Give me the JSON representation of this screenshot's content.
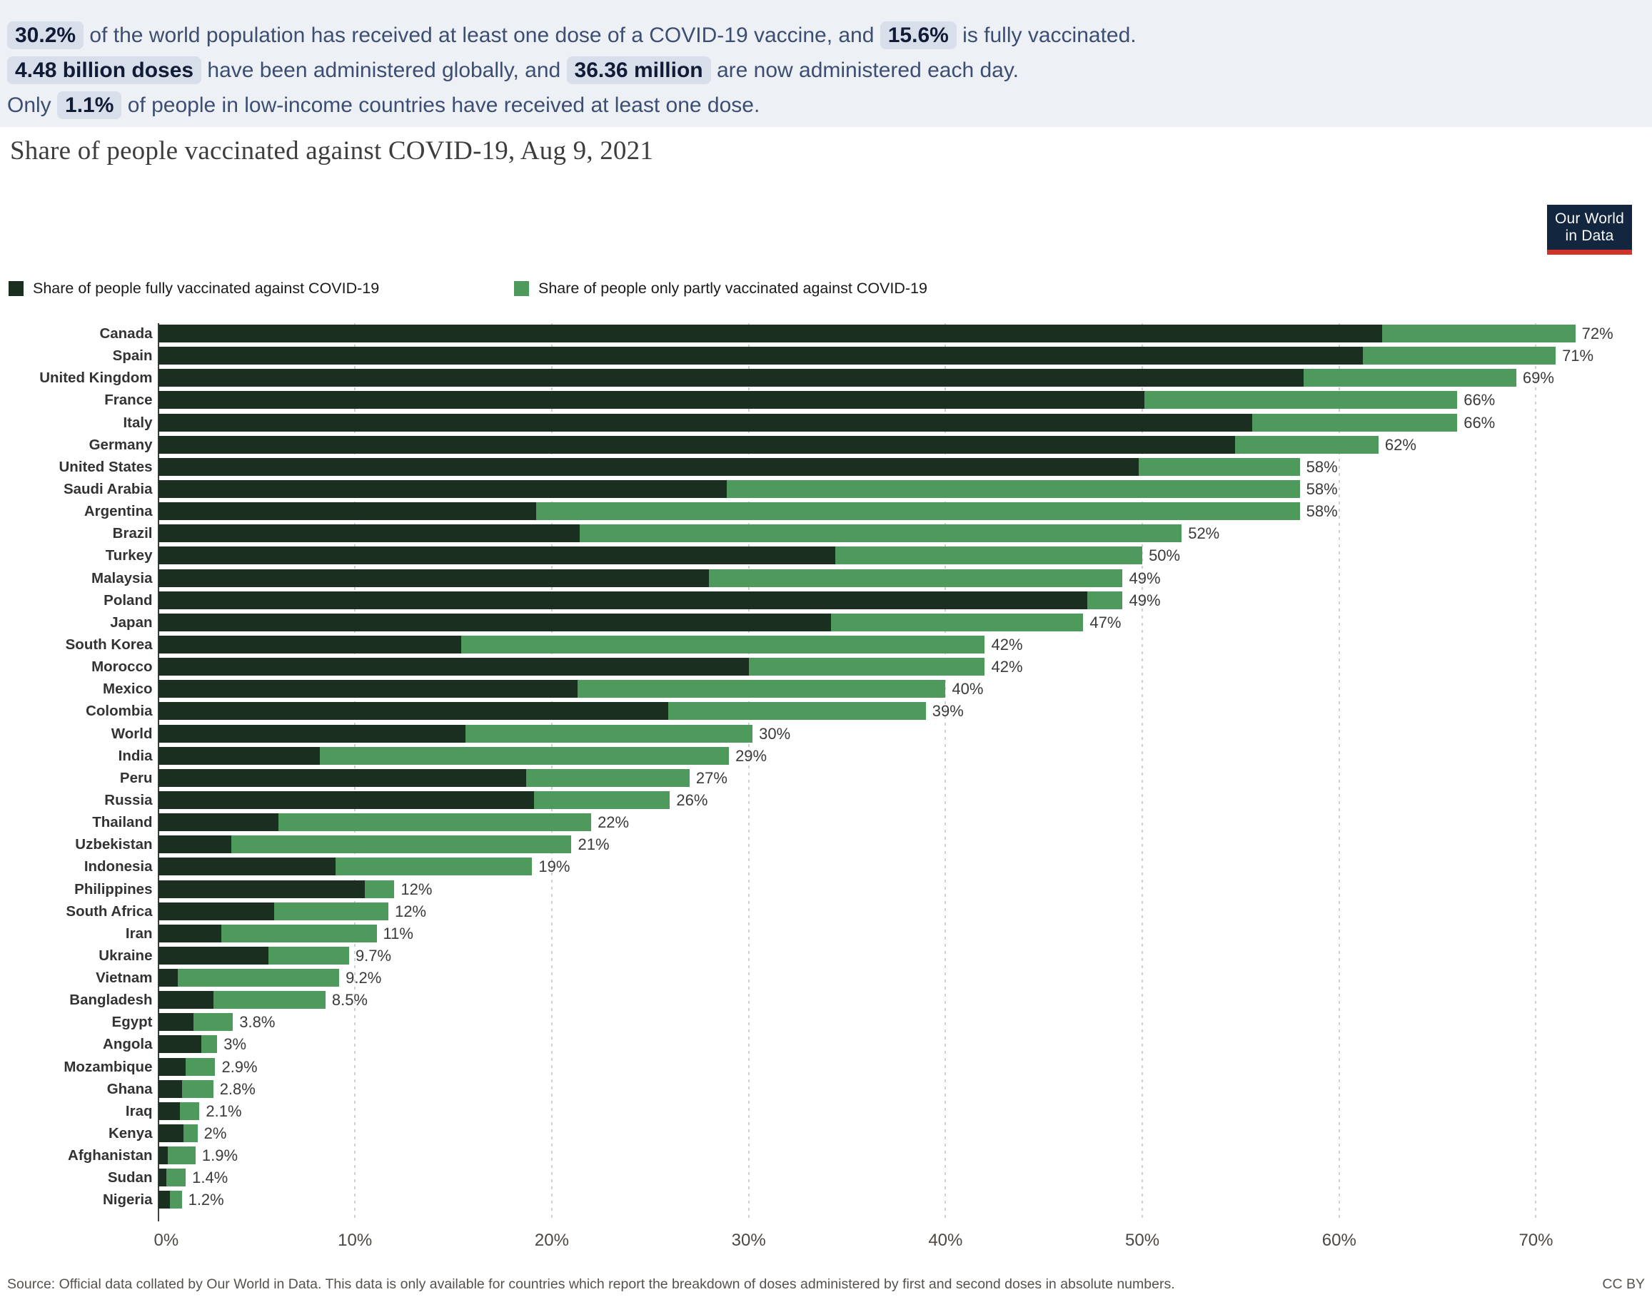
{
  "banner": {
    "lines": [
      [
        {
          "text": "30.2%",
          "chip": true
        },
        {
          "text": " of the world population has received at least one dose of a COVID-19 vaccine, and ",
          "chip": false
        },
        {
          "text": "15.6%",
          "chip": true
        },
        {
          "text": " is fully vaccinated.",
          "chip": false
        }
      ],
      [
        {
          "text": "4.48 billion doses",
          "chip": true
        },
        {
          "text": " have been administered globally, and ",
          "chip": false
        },
        {
          "text": "36.36 million",
          "chip": true
        },
        {
          "text": " are now administered each day.",
          "chip": false
        }
      ],
      [
        {
          "text": "Only ",
          "chip": false
        },
        {
          "text": "1.1%",
          "chip": true
        },
        {
          "text": " of people in low-income countries have received at least one dose.",
          "chip": false
        }
      ]
    ]
  },
  "title": "Share of people vaccinated against COVID-19, Aug 9, 2021",
  "logo": {
    "line1": "Our World",
    "line2": "in Data"
  },
  "legend": [
    {
      "label": "Share of people fully vaccinated against COVID-19",
      "color": "#1b2f21"
    },
    {
      "label": "Share of people only partly vaccinated against COVID-19",
      "color": "#4e9a5c"
    }
  ],
  "source": {
    "text": "Source: Official data collated by Our World in Data. This data is only available for countries which report the breakdown of doses administered by first and second doses in absolute numbers.",
    "license": "CC BY"
  },
  "chart_data": {
    "type": "bar",
    "orientation": "horizontal",
    "stacked": true,
    "title": "Share of people vaccinated against COVID-19, Aug 9, 2021",
    "series_names": [
      "Share of people fully vaccinated against COVID-19",
      "Share of people only partly vaccinated against COVID-19"
    ],
    "colors": {
      "fully": "#1b2f21",
      "partly": "#4e9a5c"
    },
    "x_ticks": [
      "0%",
      "10%",
      "20%",
      "30%",
      "40%",
      "50%",
      "60%",
      "70%"
    ],
    "x_tick_values": [
      0,
      10,
      20,
      30,
      40,
      50,
      60,
      70
    ],
    "xlim": [
      0,
      75.9
    ],
    "grid": true,
    "countries": [
      {
        "name": "Canada",
        "fully": 62.2,
        "partly": 9.8,
        "label": "72%"
      },
      {
        "name": "Spain",
        "fully": 61.2,
        "partly": 9.8,
        "label": "71%"
      },
      {
        "name": "United Kingdom",
        "fully": 58.2,
        "partly": 10.8,
        "label": "69%"
      },
      {
        "name": "France",
        "fully": 50.1,
        "partly": 15.9,
        "label": "66%"
      },
      {
        "name": "Italy",
        "fully": 55.6,
        "partly": 10.4,
        "label": "66%"
      },
      {
        "name": "Germany",
        "fully": 54.7,
        "partly": 7.3,
        "label": "62%"
      },
      {
        "name": "United States",
        "fully": 49.8,
        "partly": 8.2,
        "label": "58%"
      },
      {
        "name": "Saudi Arabia",
        "fully": 28.9,
        "partly": 29.1,
        "label": "58%"
      },
      {
        "name": "Argentina",
        "fully": 19.2,
        "partly": 38.8,
        "label": "58%"
      },
      {
        "name": "Brazil",
        "fully": 21.4,
        "partly": 30.6,
        "label": "52%"
      },
      {
        "name": "Turkey",
        "fully": 34.4,
        "partly": 15.6,
        "label": "50%"
      },
      {
        "name": "Malaysia",
        "fully": 28.0,
        "partly": 21.0,
        "label": "49%"
      },
      {
        "name": "Poland",
        "fully": 47.2,
        "partly": 1.8,
        "label": "49%"
      },
      {
        "name": "Japan",
        "fully": 34.2,
        "partly": 12.8,
        "label": "47%"
      },
      {
        "name": "South Korea",
        "fully": 15.4,
        "partly": 26.6,
        "label": "42%"
      },
      {
        "name": "Morocco",
        "fully": 30.0,
        "partly": 12.0,
        "label": "42%"
      },
      {
        "name": "Mexico",
        "fully": 21.3,
        "partly": 18.7,
        "label": "40%"
      },
      {
        "name": "Colombia",
        "fully": 25.9,
        "partly": 13.1,
        "label": "39%"
      },
      {
        "name": "World",
        "fully": 15.6,
        "partly": 14.6,
        "label": "30%"
      },
      {
        "name": "India",
        "fully": 8.2,
        "partly": 20.8,
        "label": "29%"
      },
      {
        "name": "Peru",
        "fully": 18.7,
        "partly": 8.3,
        "label": "27%"
      },
      {
        "name": "Russia",
        "fully": 19.1,
        "partly": 6.9,
        "label": "26%"
      },
      {
        "name": "Thailand",
        "fully": 6.1,
        "partly": 15.9,
        "label": "22%"
      },
      {
        "name": "Uzbekistan",
        "fully": 3.7,
        "partly": 17.3,
        "label": "21%"
      },
      {
        "name": "Indonesia",
        "fully": 9.0,
        "partly": 10.0,
        "label": "19%"
      },
      {
        "name": "Philippines",
        "fully": 10.5,
        "partly": 1.5,
        "label": "12%"
      },
      {
        "name": "South Africa",
        "fully": 5.9,
        "partly": 5.8,
        "label": "12%"
      },
      {
        "name": "Iran",
        "fully": 3.2,
        "partly": 7.9,
        "label": "11%"
      },
      {
        "name": "Ukraine",
        "fully": 5.6,
        "partly": 4.1,
        "label": "9.7%"
      },
      {
        "name": "Vietnam",
        "fully": 1.0,
        "partly": 8.2,
        "label": "9.2%"
      },
      {
        "name": "Bangladesh",
        "fully": 2.8,
        "partly": 5.7,
        "label": "8.5%"
      },
      {
        "name": "Egypt",
        "fully": 1.8,
        "partly": 2.0,
        "label": "3.8%"
      },
      {
        "name": "Angola",
        "fully": 2.2,
        "partly": 0.8,
        "label": "3%"
      },
      {
        "name": "Mozambique",
        "fully": 1.4,
        "partly": 1.5,
        "label": "2.9%"
      },
      {
        "name": "Ghana",
        "fully": 1.2,
        "partly": 1.6,
        "label": "2.8%"
      },
      {
        "name": "Iraq",
        "fully": 1.1,
        "partly": 1.0,
        "label": "2.1%"
      },
      {
        "name": "Kenya",
        "fully": 1.3,
        "partly": 0.7,
        "label": "2%"
      },
      {
        "name": "Afghanistan",
        "fully": 0.5,
        "partly": 1.4,
        "label": "1.9%"
      },
      {
        "name": "Sudan",
        "fully": 0.4,
        "partly": 1.0,
        "label": "1.4%"
      },
      {
        "name": "Nigeria",
        "fully": 0.6,
        "partly": 0.6,
        "label": "1.2%"
      }
    ]
  }
}
